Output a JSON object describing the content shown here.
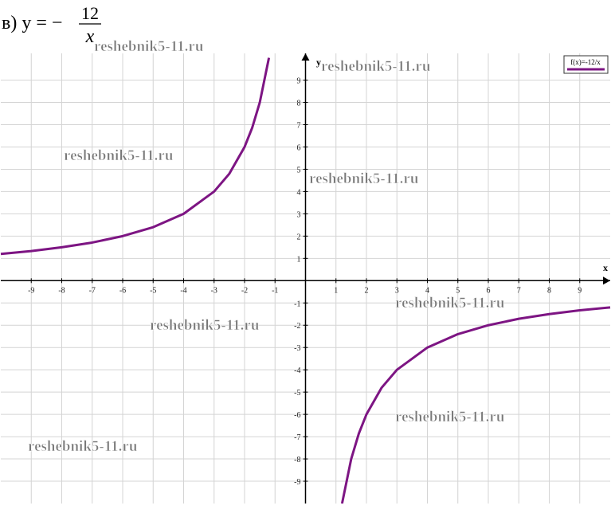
{
  "chart_data": {
    "type": "line",
    "title": {
      "prefix": "в) y = −",
      "numerator": "12",
      "denominator": "x"
    },
    "x_label": "x",
    "y_label": "y",
    "legend": "f(x)=-12/x",
    "legend_position": "top-right",
    "watermarks": [
      "reshebnik5-11.ru",
      "reshebnik5-11.ru",
      "reshebnik5-11.ru",
      "reshebnik5-11.ru",
      "reshebnik5-11.ru",
      "reshebnik5-11.ru",
      "reshebnik5-11.ru",
      "reshebnik5-11.ru"
    ],
    "x": [
      -10,
      -9,
      -8,
      -7,
      -6,
      -5,
      -4,
      -3,
      -2.5,
      -2,
      -1.75,
      -1.5,
      -1.2,
      0,
      1.2,
      1.5,
      1.75,
      2,
      2.5,
      3,
      4,
      5,
      6,
      7,
      8,
      9,
      10
    ],
    "series": [
      {
        "name": "f(x)=-12/x",
        "color": "#7d1583",
        "values": [
          1.2,
          1.33,
          1.5,
          1.71,
          2,
          2.4,
          3,
          4,
          4.8,
          6,
          6.86,
          8,
          10,
          null,
          -10,
          -8,
          -6.86,
          -6,
          -4.8,
          -4,
          -3,
          -2.4,
          -2,
          -1.71,
          -1.5,
          -1.33,
          -1.2
        ]
      }
    ],
    "xlim": [
      -10,
      10
    ],
    "ylim": [
      -10,
      10.2
    ],
    "xticks": [
      -9,
      -8,
      -7,
      -6,
      -5,
      -4,
      -3,
      -2,
      -1,
      1,
      2,
      3,
      4,
      5,
      6,
      7,
      8,
      9
    ],
    "yticks": [
      -9,
      -8,
      -7,
      -6,
      -5,
      -4,
      -3,
      -2,
      -1,
      1,
      2,
      3,
      4,
      5,
      6,
      7,
      8,
      9
    ],
    "grid": true
  }
}
